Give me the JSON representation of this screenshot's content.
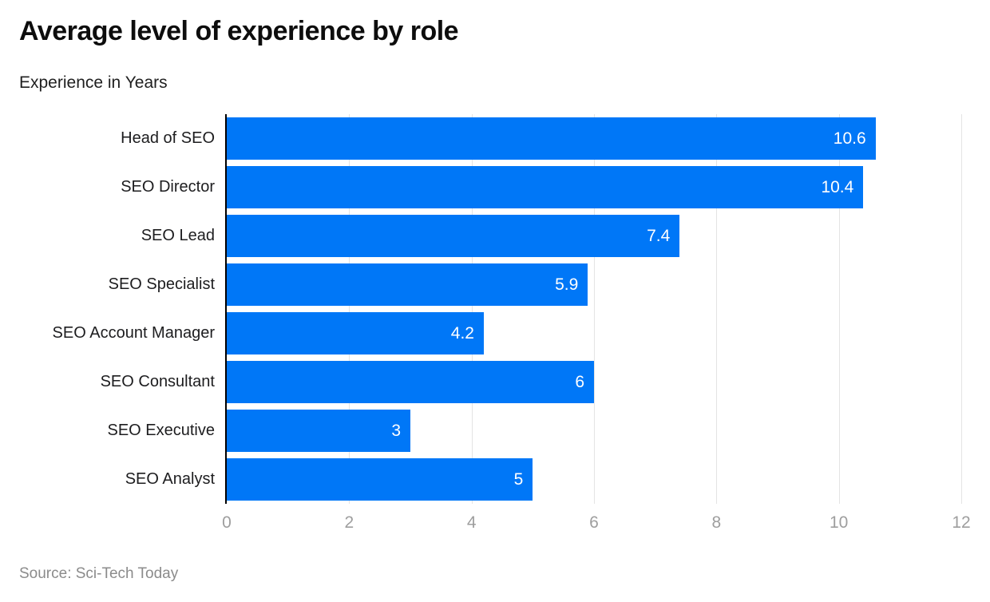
{
  "chart_data": {
    "type": "bar",
    "orientation": "horizontal",
    "title": "Average level of experience by role",
    "subtitle": "Experience in Years",
    "categories": [
      "Head of SEO",
      "SEO Director",
      "SEO Lead",
      "SEO Specialist",
      "SEO Account Manager",
      "SEO Consultant",
      "SEO Executive",
      "SEO Analyst"
    ],
    "values": [
      10.6,
      10.4,
      7.4,
      5.9,
      4.2,
      6,
      3,
      5
    ],
    "xlim": [
      0,
      12
    ],
    "xticks": [
      0,
      2,
      4,
      6,
      8,
      10,
      12
    ],
    "grid": true,
    "legend": false,
    "value_label_position": "inside-end"
  },
  "source": "Source: Sci-Tech Today",
  "colors": {
    "bar": "#0077f7",
    "axis": "#000000",
    "gridline": "#e4e4e4",
    "tick-label": "#9e9e9e",
    "category-label": "#1d1d1f",
    "value-label": "#ffffff",
    "title": "#0d0d0d",
    "subtitle": "#1f1f1f",
    "source": "#8b8b8b"
  }
}
